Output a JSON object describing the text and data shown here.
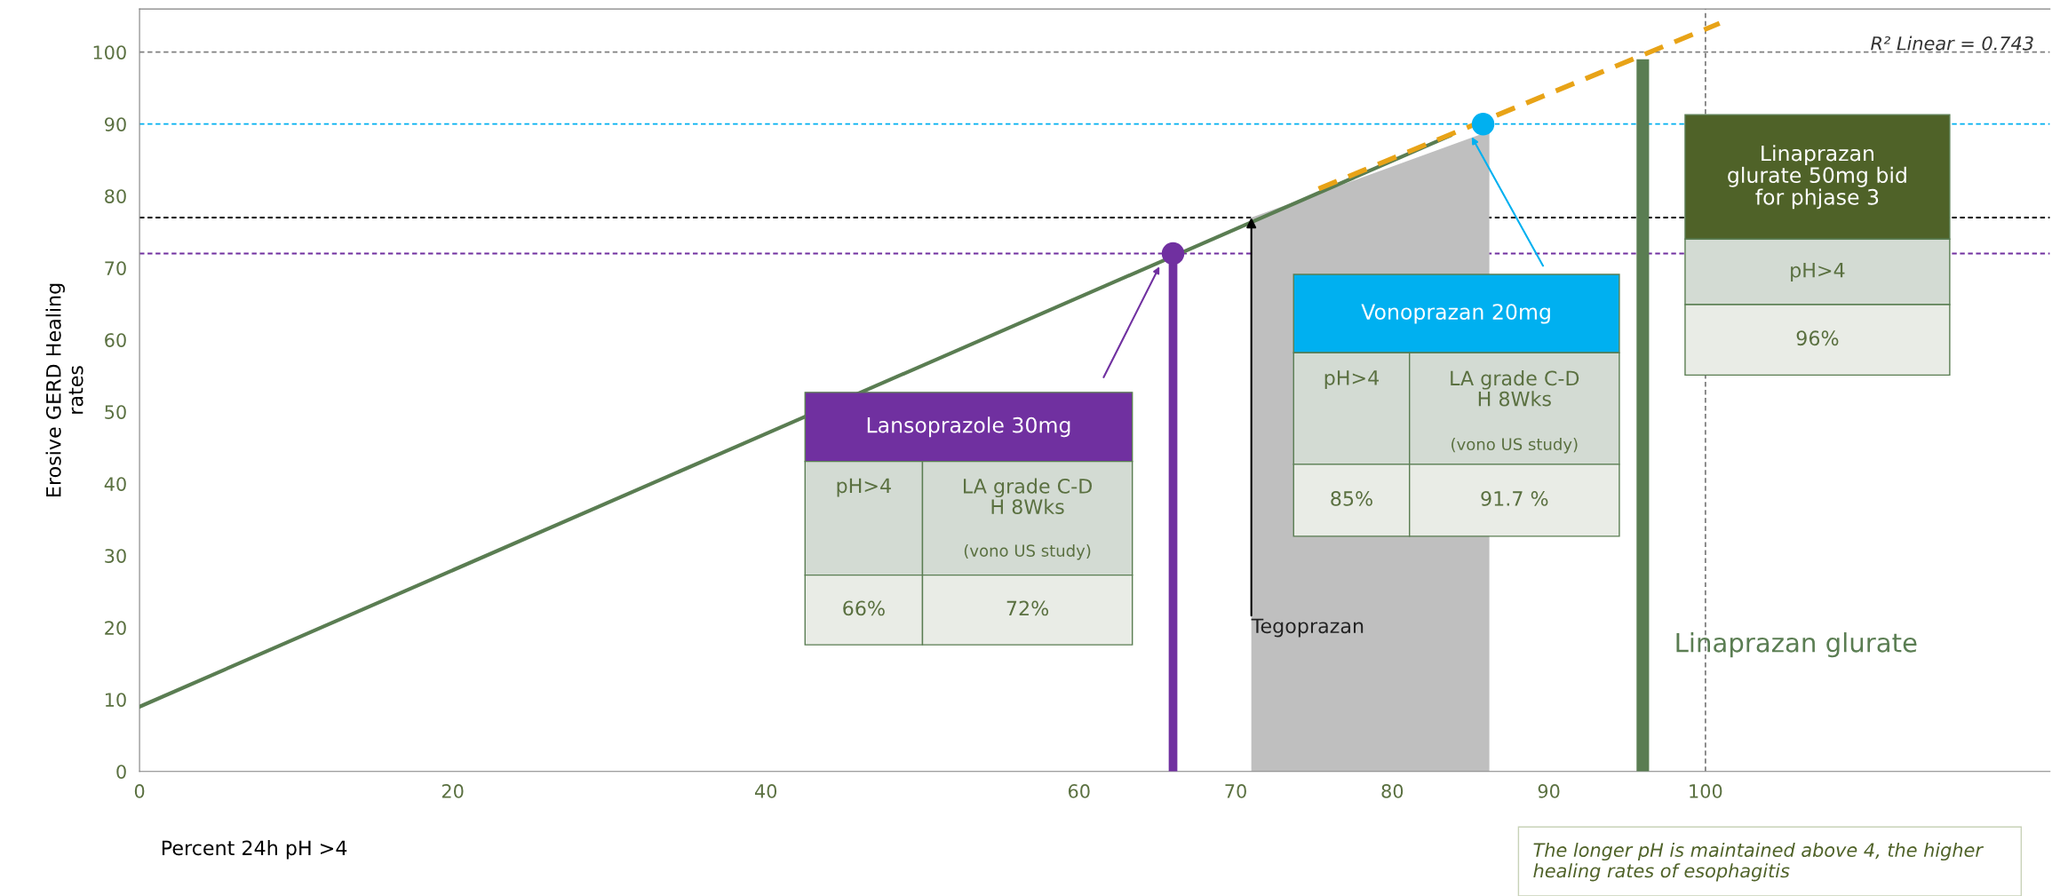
{
  "chart_data": {
    "type": "line",
    "xlabel": "Percent 24h pH >4",
    "ylabel": "Erosive GERD Healing\nrates",
    "xlim": [
      0,
      122
    ],
    "ylim": [
      0,
      106
    ],
    "xticks": [
      0,
      20,
      40,
      60,
      70,
      80,
      90,
      100
    ],
    "yticks": [
      0,
      10,
      20,
      30,
      40,
      50,
      60,
      70,
      80,
      90,
      100
    ],
    "grid": false,
    "legend": false,
    "series": [
      {
        "type": "area",
        "color": "#bfbfbf",
        "x": [
          71,
          86.2
        ],
        "values": [
          77,
          89
        ]
      },
      {
        "type": "lollipop",
        "color": "#7030a0",
        "marker": "circle",
        "x": [
          66
        ],
        "values": [
          72
        ]
      },
      {
        "type": "bar",
        "color": "#5a7d52",
        "x": [
          96
        ],
        "values": [
          99
        ]
      },
      {
        "color": "#5a7d52",
        "line_style": "solid",
        "x": [
          0,
          83.7
        ],
        "values": [
          9,
          88.4
        ]
      },
      {
        "color": "#e8a317",
        "line_style": "dashed",
        "x": [
          75.3,
          100.9
        ],
        "values": [
          81,
          104
        ]
      },
      {
        "type": "scatter",
        "color": "#00b0f0",
        "marker": "circle",
        "x": [
          85.8
        ],
        "values": [
          90
        ]
      }
    ],
    "ref_lines": [
      {
        "axis": "y",
        "value": 100,
        "color": "#808080",
        "line_style": "dashed"
      },
      {
        "axis": "y",
        "value": 90,
        "color": "#00b0f0",
        "line_style": "dashed"
      },
      {
        "axis": "y",
        "value": 77,
        "color": "#000000",
        "line_style": "dashed"
      },
      {
        "axis": "y",
        "value": 72,
        "color": "#7030a0",
        "line_style": "dashed"
      },
      {
        "axis": "x",
        "value": 100,
        "color": "#808080",
        "line_style": "dashed"
      }
    ],
    "annotations": [
      "Lansoprazole 30mg",
      "pH>4",
      "LA grade C-D\nH 8Wks",
      "(vono US study)",
      "66%",
      "72%",
      "Vonoprazan 20mg",
      "pH>4",
      "LA grade C-D\nH 8Wks",
      "(vono US study)",
      "85%",
      "91.7 %",
      "Linaprazan\nglurate 50mg bid\nfor phjase 3",
      "pH>4",
      "96%",
      {
        "text": "Tegoprazan",
        "x": 71,
        "y": 77
      },
      "Linaprazan glurate",
      "R² Linear = 0.743",
      "The longer pH is maintained above 4, the higher healing rates of esophagitis"
    ]
  }
}
